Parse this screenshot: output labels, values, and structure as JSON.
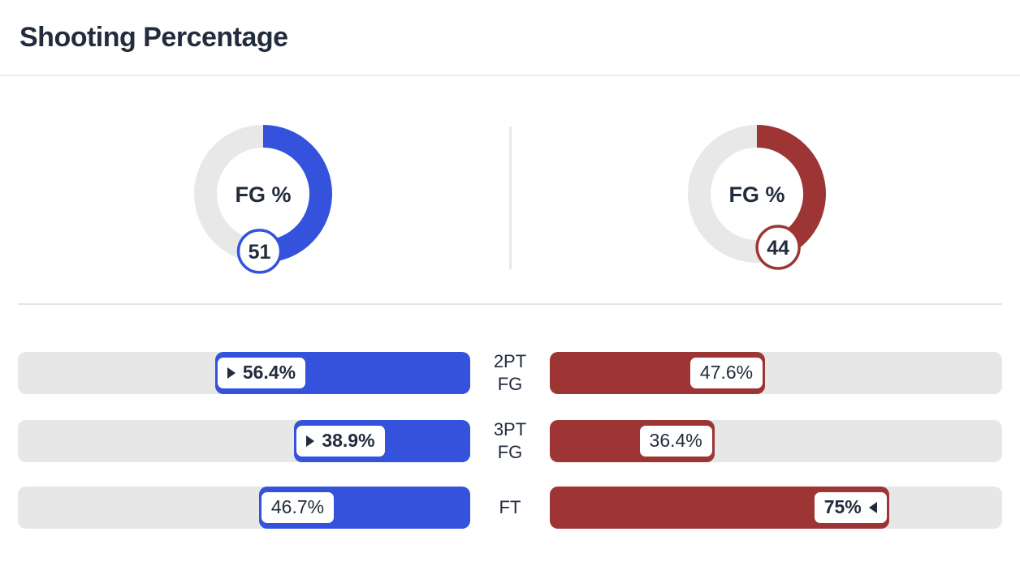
{
  "page": {
    "title": "Shooting Percentage"
  },
  "colors": {
    "home": "#3452db",
    "away": "#9e3535",
    "track": "#e7e7e7",
    "donut_track": "#e8e8e8",
    "text": "#232c3d",
    "divider": "#e8e8e8",
    "pill_bg": "#ffffff"
  },
  "chart_data": {
    "type": "comparison-dashboard",
    "donuts": [
      {
        "team": "home",
        "label": "FG %",
        "value": 51,
        "max": 100,
        "badge": "51",
        "color": "#3452db"
      },
      {
        "team": "away",
        "label": "FG %",
        "value": 44,
        "max": 100,
        "badge": "44",
        "color": "#9e3535"
      }
    ],
    "bars": {
      "range": [
        0,
        100
      ],
      "rows": [
        {
          "category_line1": "2PT",
          "category_line2": "FG",
          "left": {
            "value": 56.4,
            "label": "56.4%",
            "leader": true
          },
          "right": {
            "value": 47.6,
            "label": "47.6%",
            "leader": false
          }
        },
        {
          "category_line1": "3PT",
          "category_line2": "FG",
          "left": {
            "value": 38.9,
            "label": "38.9%",
            "leader": true
          },
          "right": {
            "value": 36.4,
            "label": "36.4%",
            "leader": false
          }
        },
        {
          "category_line1": "FT",
          "category_line2": "",
          "left": {
            "value": 46.7,
            "label": "46.7%",
            "leader": false
          },
          "right": {
            "value": 75,
            "label": "75%",
            "leader": true
          }
        }
      ]
    }
  }
}
